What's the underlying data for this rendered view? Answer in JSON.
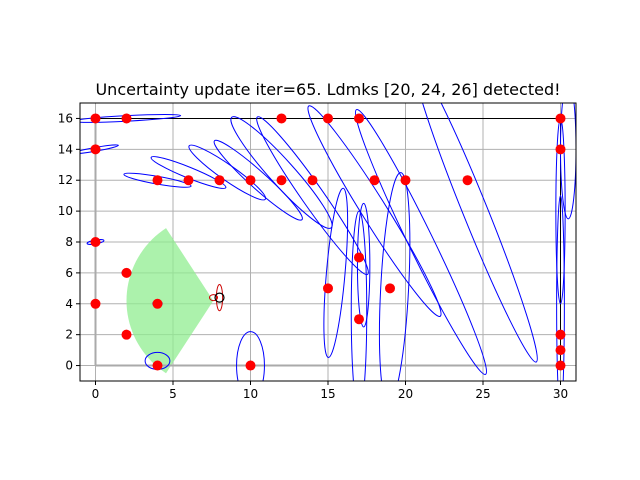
{
  "chart_data": {
    "type": "scatter",
    "title": "Uncertainty update iter=65. Ldmks [20, 24, 26] detected!",
    "xlabel": "",
    "ylabel": "",
    "xlim": [
      -1,
      31
    ],
    "ylim": [
      -1,
      17
    ],
    "x_ticks": [
      0,
      5,
      10,
      15,
      20,
      25,
      30
    ],
    "y_ticks": [
      0,
      2,
      4,
      6,
      8,
      10,
      12,
      14,
      16
    ],
    "grid": true,
    "colors": {
      "landmark": "#ff0000",
      "ellipse": "#0000ff",
      "robot_ellipse": "#cc0000",
      "fov": "#90ee90",
      "map_border": "#000000",
      "map_border_grey": "#aaaaaa",
      "grid": "#b0b0b0"
    },
    "landmarks": [
      {
        "x": 0,
        "y": 16
      },
      {
        "x": 2,
        "y": 16
      },
      {
        "x": 12,
        "y": 16
      },
      {
        "x": 15,
        "y": 16
      },
      {
        "x": 17,
        "y": 16
      },
      {
        "x": 30,
        "y": 16
      },
      {
        "x": 0,
        "y": 14
      },
      {
        "x": 30,
        "y": 14
      },
      {
        "x": 4,
        "y": 12
      },
      {
        "x": 6,
        "y": 12
      },
      {
        "x": 8,
        "y": 12
      },
      {
        "x": 10,
        "y": 12
      },
      {
        "x": 12,
        "y": 12
      },
      {
        "x": 14,
        "y": 12
      },
      {
        "x": 18,
        "y": 12
      },
      {
        "x": 20,
        "y": 12
      },
      {
        "x": 24,
        "y": 12
      },
      {
        "x": 0,
        "y": 8
      },
      {
        "x": 17,
        "y": 7
      },
      {
        "x": 2,
        "y": 6
      },
      {
        "x": 15,
        "y": 5
      },
      {
        "x": 19,
        "y": 5
      },
      {
        "x": 0,
        "y": 4
      },
      {
        "x": 4,
        "y": 4
      },
      {
        "x": 17,
        "y": 3
      },
      {
        "x": 2,
        "y": 2
      },
      {
        "x": 30,
        "y": 2
      },
      {
        "x": 30,
        "y": 1
      },
      {
        "x": 4,
        "y": 0
      },
      {
        "x": 10,
        "y": 0
      },
      {
        "x": 30,
        "y": 0
      }
    ],
    "landmark_ellipses": [
      {
        "cx": 2,
        "cy": 16,
        "rx": 3.5,
        "ry": 0.18,
        "angle": 3
      },
      {
        "cx": 0,
        "cy": 14,
        "rx": 1.5,
        "ry": 0.12,
        "angle": 10
      },
      {
        "cx": 0,
        "cy": 8,
        "rx": 0.55,
        "ry": 0.12,
        "angle": 10
      },
      {
        "cx": 0,
        "cy": 4,
        "rx": 0.2,
        "ry": 0.15,
        "angle": 0
      },
      {
        "cx": 2,
        "cy": 6,
        "rx": 0.3,
        "ry": 0.15,
        "angle": 0
      },
      {
        "cx": 4,
        "cy": 4,
        "rx": 0.3,
        "ry": 0.2,
        "angle": 0
      },
      {
        "cx": 2,
        "cy": 2,
        "rx": 0.2,
        "ry": 0.15,
        "angle": 0
      },
      {
        "cx": 4,
        "cy": 0.3,
        "rx": 0.8,
        "ry": 0.55,
        "angle": 0
      },
      {
        "cx": 4,
        "cy": 12,
        "rx": 2.2,
        "ry": 0.25,
        "angle": -10
      },
      {
        "cx": 6,
        "cy": 12.5,
        "rx": 2.6,
        "ry": 0.35,
        "angle": -22
      },
      {
        "cx": 8.5,
        "cy": 12.5,
        "rx": 3.0,
        "ry": 0.5,
        "angle": -35
      },
      {
        "cx": 10.5,
        "cy": 12,
        "rx": 3.8,
        "ry": 0.55,
        "angle": -42
      },
      {
        "cx": 12,
        "cy": 12.5,
        "rx": 4.8,
        "ry": 0.8,
        "angle": -48
      },
      {
        "cx": 14,
        "cy": 11,
        "rx": 6.2,
        "ry": 0.7,
        "angle": -55
      },
      {
        "cx": 18,
        "cy": 10,
        "rx": 8.0,
        "ry": 0.8,
        "angle": -58
      },
      {
        "cx": 21,
        "cy": 8,
        "rx": 9.5,
        "ry": 0.8,
        "angle": -64
      },
      {
        "cx": 24.5,
        "cy": 10,
        "rx": 10.5,
        "ry": 0.8,
        "angle": -68
      },
      {
        "cx": 10,
        "cy": 0,
        "rx": 0.9,
        "ry": 2.2,
        "angle": 0
      },
      {
        "cx": 17,
        "cy": 3.5,
        "rx": 0.5,
        "ry": 6.5,
        "angle": 0
      },
      {
        "cx": 17.3,
        "cy": 6.5,
        "rx": 0.4,
        "ry": 4.0,
        "angle": 0
      },
      {
        "cx": 15.5,
        "cy": 6,
        "rx": 0.6,
        "ry": 5.5,
        "angle": -5
      },
      {
        "cx": 19.3,
        "cy": 5,
        "rx": 0.9,
        "ry": 7.5,
        "angle": -3
      },
      {
        "cx": 30,
        "cy": 4,
        "rx": 0.25,
        "ry": 7.0,
        "angle": 0
      },
      {
        "cx": 30,
        "cy": 10,
        "rx": 0.3,
        "ry": 6.0,
        "angle": 0
      },
      {
        "cx": 30.5,
        "cy": 14,
        "rx": 0.5,
        "ry": 4.5,
        "angle": 0
      }
    ],
    "robot": {
      "x": 8,
      "y": 4.4,
      "heading_deg": 0
    },
    "robot_ellipse": {
      "cx": 8,
      "cy": 4.4,
      "rx": 0.2,
      "ry": 0.85,
      "angle": 0
    },
    "fov": {
      "x": 7.6,
      "y": 4.2,
      "range": 5.6,
      "start_deg": 123,
      "end_deg": 237
    },
    "map_border": {
      "x0": 0,
      "y0": 0,
      "x1": 30,
      "y1": 16
    }
  }
}
